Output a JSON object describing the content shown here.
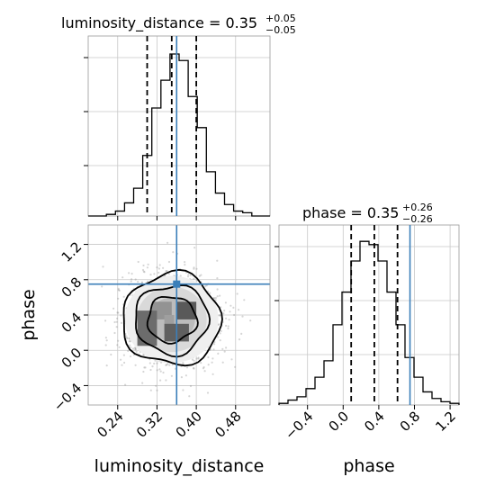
{
  "colors": {
    "truth": "#3b7fb9",
    "hist": "#000000",
    "grid": "#c8c8c8"
  },
  "chart_data": {
    "type": "corner",
    "parameters": [
      "luminosity_distance",
      "phase"
    ],
    "truths": {
      "luminosity_distance": 0.36,
      "phase": 0.75
    },
    "panels": [
      {
        "name": "luminosity_distance-marginal",
        "type": "histogram",
        "title": {
          "main": "luminosity_distance = 0.35",
          "sup": "+0.05",
          "sub": "−0.05"
        },
        "xlim": [
          0.18,
          0.55
        ],
        "ylim": [
          0,
          1.1
        ],
        "quantiles": [
          0.3,
          0.35,
          0.4
        ],
        "bin_edges": [
          0.18,
          0.1985,
          0.217,
          0.2355,
          0.254,
          0.2725,
          0.291,
          0.3095,
          0.328,
          0.3465,
          0.365,
          0.3835,
          0.402,
          0.4205,
          0.439,
          0.4575,
          0.476,
          0.4945,
          0.513,
          0.5315,
          0.55
        ],
        "counts": [
          0.0,
          0.0,
          0.01,
          0.03,
          0.08,
          0.17,
          0.37,
          0.66,
          0.83,
          0.99,
          0.95,
          0.73,
          0.54,
          0.27,
          0.14,
          0.07,
          0.03,
          0.02,
          0.0,
          0.0
        ]
      },
      {
        "name": "phase-marginal",
        "type": "histogram",
        "title": {
          "main": "phase = 0.35",
          "sup": "+0.26",
          "sub": "−0.26"
        },
        "xlim": [
          -0.72,
          1.3
        ],
        "xticks": [
          "−0.4",
          "0.0",
          "0.4",
          "0.8",
          "1.2"
        ],
        "xtick_values": [
          -0.4,
          0.0,
          0.4,
          0.8,
          1.2
        ],
        "xlabel": "phase",
        "ylim": [
          0,
          1.1
        ],
        "quantiles": [
          0.09,
          0.35,
          0.61
        ],
        "bin_edges": [
          -0.72,
          -0.619,
          -0.518,
          -0.417,
          -0.316,
          -0.215,
          -0.114,
          -0.013,
          0.088,
          0.189,
          0.29,
          0.391,
          0.492,
          0.593,
          0.694,
          0.795,
          0.896,
          0.997,
          1.098,
          1.199,
          1.3
        ],
        "counts": [
          0.01,
          0.03,
          0.05,
          0.1,
          0.17,
          0.27,
          0.49,
          0.69,
          0.88,
          1.0,
          0.98,
          0.88,
          0.69,
          0.49,
          0.29,
          0.17,
          0.08,
          0.04,
          0.02,
          0.01
        ]
      },
      {
        "name": "joint-density",
        "type": "scatter-contour",
        "xlim": [
          0.18,
          0.55
        ],
        "ylim": [
          -0.62,
          1.42
        ],
        "xticks": [
          "0.24",
          "0.32",
          "0.40",
          "0.48"
        ],
        "xtick_values": [
          0.24,
          0.32,
          0.4,
          0.48
        ],
        "yticks": [
          "−0.4",
          "0.0",
          "0.4",
          "0.8",
          "1.2"
        ],
        "ytick_values": [
          -0.4,
          0.0,
          0.4,
          0.8,
          1.2
        ],
        "xlabel": "luminosity_distance",
        "ylabel": "phase",
        "center": [
          0.35,
          0.35
        ],
        "spread": [
          0.05,
          0.26
        ],
        "contour_levels": [
          1,
          1.5,
          2
        ],
        "density_cells": [
          {
            "x": 0.33,
            "y": 0.45,
            "w": 0.04,
            "h": 0.2,
            "shade": 0.15
          },
          {
            "x": 0.345,
            "y": 0.3,
            "w": 0.02,
            "h": 0.2,
            "shade": 0.05
          },
          {
            "x": 0.36,
            "y": 0.2,
            "w": 0.05,
            "h": 0.2,
            "shade": 0.55
          },
          {
            "x": 0.3,
            "y": 0.25,
            "w": 0.04,
            "h": 0.4,
            "shade": 0.45
          },
          {
            "x": 0.38,
            "y": 0.45,
            "w": 0.04,
            "h": 0.2,
            "shade": 0.6
          }
        ]
      }
    ]
  }
}
